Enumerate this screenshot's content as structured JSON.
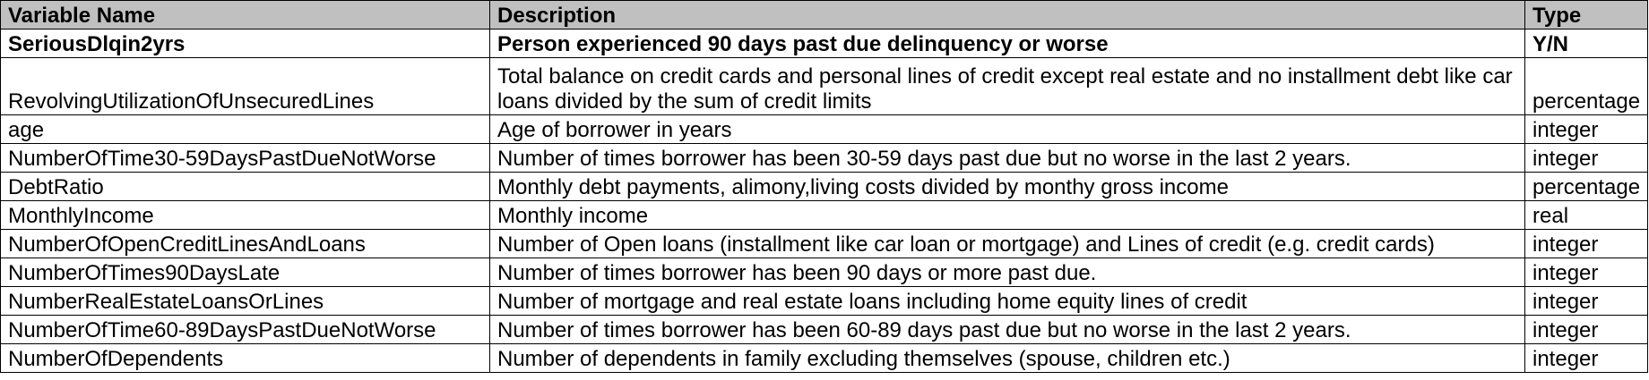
{
  "headers": {
    "variable_name": "Variable Name",
    "description": "Description",
    "type": "Type"
  },
  "rows": [
    {
      "name": "SeriousDlqin2yrs",
      "description": "Person experienced 90 days past due delinquency or worse",
      "type": "Y/N"
    },
    {
      "name": "RevolvingUtilizationOfUnsecuredLines",
      "description": "Total balance on credit cards and personal lines of credit except real estate and no installment debt like car loans divided by the sum of credit limits",
      "type": "percentage"
    },
    {
      "name": "age",
      "description": "Age of borrower in years",
      "type": "integer"
    },
    {
      "name": "NumberOfTime30-59DaysPastDueNotWorse",
      "description": "Number of times borrower has been 30-59 days past due but no worse in the last 2 years.",
      "type": "integer"
    },
    {
      "name": "DebtRatio",
      "description": "Monthly debt payments, alimony,living costs divided by monthy gross income",
      "type": "percentage"
    },
    {
      "name": "MonthlyIncome",
      "description": "Monthly income",
      "type": "real"
    },
    {
      "name": "NumberOfOpenCreditLinesAndLoans",
      "description": "Number of Open loans (installment like car loan or mortgage) and Lines of credit (e.g. credit cards)",
      "type": "integer"
    },
    {
      "name": "NumberOfTimes90DaysLate",
      "description": "Number of times borrower has been 90 days or more past due.",
      "type": "integer"
    },
    {
      "name": "NumberRealEstateLoansOrLines",
      "description": "Number of mortgage and real estate loans including home equity lines of credit",
      "type": "integer"
    },
    {
      "name": "NumberOfTime60-89DaysPastDueNotWorse",
      "description": "Number of times borrower has been 60-89 days past due but no worse in the last 2 years.",
      "type": "integer"
    },
    {
      "name": "NumberOfDependents",
      "description": "Number of dependents in family excluding themselves (spouse, children etc.)",
      "type": "integer"
    }
  ]
}
